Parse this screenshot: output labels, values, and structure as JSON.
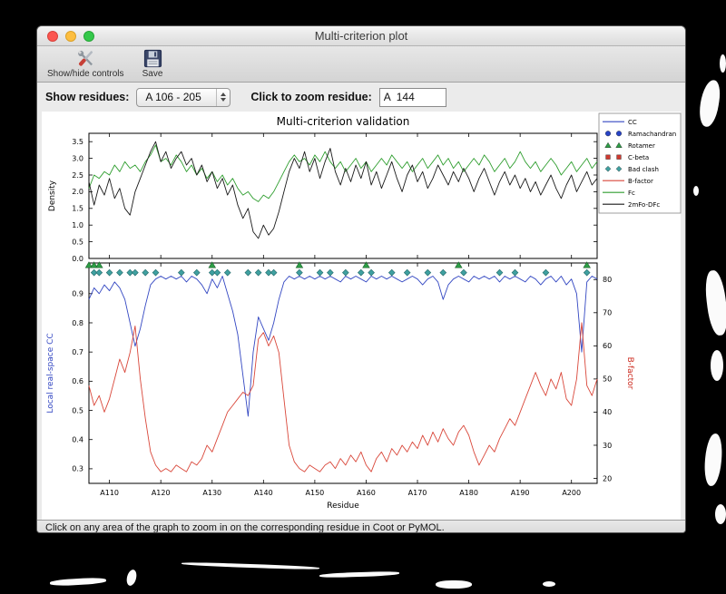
{
  "window": {
    "title": "Multi-criterion plot",
    "toolbar": {
      "show_hide": "Show/hide controls",
      "save": "Save"
    },
    "controls": {
      "show_residues_label": "Show residues:",
      "residue_range": "A 106 - 205",
      "zoom_label": "Click to zoom residue:",
      "zoom_value": "A  144"
    },
    "status_bar": "Click on any area of the graph to zoom in on the corresponding residue in Coot or PyMOL."
  },
  "chart_data": {
    "type": "line",
    "title": "Multi-criterion validation",
    "xlabel": "Residue",
    "x_start": 106,
    "x_end": 205,
    "x_tick_residues": [
      110,
      120,
      130,
      140,
      150,
      160,
      170,
      180,
      190,
      200
    ],
    "x_tick_labels": [
      "A110",
      "A120",
      "A130",
      "A140",
      "A150",
      "A160",
      "A170",
      "A180",
      "A190",
      "A200"
    ],
    "top": {
      "ylabel": "Density",
      "ylim": [
        0.0,
        3.75
      ],
      "yticks": [
        0.0,
        0.5,
        1.0,
        1.5,
        2.0,
        2.5,
        3.0,
        3.5
      ],
      "series": [
        {
          "name": "Fc",
          "color": "#2f9e2f",
          "values": [
            2.1,
            2.5,
            2.4,
            2.6,
            2.5,
            2.8,
            2.6,
            2.9,
            2.7,
            2.8,
            2.6,
            2.9,
            3.1,
            3.4,
            2.9,
            3.0,
            2.8,
            3.1,
            2.9,
            2.6,
            2.8,
            2.5,
            2.7,
            2.4,
            2.6,
            2.3,
            2.5,
            2.2,
            2.4,
            2.1,
            1.9,
            2.0,
            1.8,
            1.7,
            1.9,
            1.8,
            2.0,
            2.3,
            2.6,
            2.9,
            3.1,
            2.9,
            3.0,
            2.8,
            3.1,
            2.9,
            3.2,
            2.9,
            2.7,
            2.9,
            2.6,
            2.8,
            3.0,
            2.7,
            2.9,
            2.6,
            2.8,
            3.0,
            2.8,
            3.1,
            2.9,
            2.7,
            2.9,
            2.6,
            2.8,
            3.0,
            2.7,
            2.9,
            3.1,
            2.8,
            3.0,
            2.7,
            2.9,
            2.6,
            2.8,
            3.0,
            2.8,
            3.1,
            2.9,
            2.6,
            2.8,
            3.0,
            2.7,
            2.9,
            3.2,
            2.9,
            2.7,
            2.9,
            2.6,
            2.8,
            3.0,
            2.8,
            2.5,
            2.7,
            2.9,
            2.6,
            2.8,
            3.0,
            2.7,
            2.9
          ]
        },
        {
          "name": "2mFo-DFc",
          "color": "#1a1a1a",
          "values": [
            2.3,
            1.6,
            2.2,
            1.9,
            2.4,
            1.8,
            2.1,
            1.5,
            1.3,
            2.0,
            2.4,
            2.8,
            3.2,
            3.5,
            2.9,
            3.2,
            2.7,
            3.0,
            3.2,
            2.8,
            3.0,
            2.5,
            2.8,
            2.3,
            2.6,
            2.1,
            2.4,
            1.9,
            2.2,
            1.6,
            1.2,
            1.5,
            0.8,
            0.6,
            1.0,
            0.7,
            0.9,
            1.4,
            2.0,
            2.6,
            3.0,
            2.7,
            3.2,
            2.6,
            3.0,
            2.4,
            2.9,
            3.3,
            2.6,
            2.2,
            2.7,
            2.3,
            2.8,
            2.4,
            2.9,
            2.2,
            2.6,
            2.1,
            2.5,
            2.9,
            2.4,
            2.0,
            2.5,
            2.8,
            2.3,
            2.6,
            2.1,
            2.4,
            2.8,
            2.5,
            2.2,
            2.6,
            2.3,
            2.7,
            2.4,
            2.0,
            2.4,
            2.7,
            2.3,
            1.9,
            2.3,
            2.6,
            2.2,
            2.5,
            2.1,
            2.4,
            2.0,
            2.3,
            1.9,
            2.2,
            2.5,
            2.1,
            1.8,
            2.2,
            2.5,
            2.0,
            2.3,
            2.6,
            2.2,
            2.4
          ]
        }
      ]
    },
    "bottom": {
      "ylabel_left": "Local real-space CC",
      "ylabel_left_color": "#3347c2",
      "ylabel_right": "B-factor",
      "ylabel_right_color": "#cc2a1e",
      "ylim_left": [
        0.25,
        1.005
      ],
      "yticks_left": [
        0.3,
        0.4,
        0.5,
        0.6,
        0.7,
        0.8,
        0.9
      ],
      "ylim_right": [
        18.5,
        85
      ],
      "yticks_right": [
        20,
        30,
        40,
        50,
        60,
        70,
        80
      ],
      "series": [
        {
          "name": "CC",
          "axis": "left",
          "color": "#3347c2",
          "values": [
            0.88,
            0.92,
            0.9,
            0.93,
            0.91,
            0.94,
            0.92,
            0.88,
            0.8,
            0.72,
            0.78,
            0.86,
            0.93,
            0.95,
            0.96,
            0.95,
            0.96,
            0.95,
            0.96,
            0.94,
            0.96,
            0.95,
            0.93,
            0.9,
            0.95,
            0.92,
            0.96,
            0.9,
            0.84,
            0.76,
            0.62,
            0.48,
            0.7,
            0.82,
            0.78,
            0.74,
            0.8,
            0.88,
            0.94,
            0.96,
            0.95,
            0.96,
            0.95,
            0.96,
            0.95,
            0.96,
            0.95,
            0.96,
            0.95,
            0.94,
            0.96,
            0.95,
            0.96,
            0.95,
            0.94,
            0.96,
            0.95,
            0.96,
            0.95,
            0.96,
            0.95,
            0.94,
            0.95,
            0.96,
            0.95,
            0.93,
            0.95,
            0.96,
            0.94,
            0.88,
            0.93,
            0.95,
            0.96,
            0.95,
            0.94,
            0.96,
            0.95,
            0.96,
            0.95,
            0.96,
            0.94,
            0.96,
            0.95,
            0.96,
            0.95,
            0.94,
            0.96,
            0.95,
            0.93,
            0.95,
            0.96,
            0.94,
            0.96,
            0.93,
            0.95,
            0.9,
            0.7,
            0.94,
            0.96,
            0.95
          ]
        },
        {
          "name": "B-factor",
          "axis": "right",
          "color": "#d9473a",
          "values": [
            48,
            42,
            45,
            40,
            44,
            50,
            56,
            52,
            58,
            66,
            50,
            38,
            28,
            24,
            22,
            23,
            22,
            24,
            23,
            22,
            25,
            24,
            26,
            30,
            28,
            32,
            36,
            40,
            42,
            44,
            46,
            45,
            48,
            62,
            64,
            60,
            63,
            58,
            44,
            30,
            25,
            23,
            22,
            24,
            23,
            22,
            24,
            25,
            23,
            26,
            24,
            27,
            25,
            28,
            24,
            22,
            26,
            28,
            25,
            29,
            27,
            30,
            28,
            31,
            29,
            33,
            30,
            34,
            31,
            35,
            32,
            30,
            34,
            36,
            33,
            28,
            24,
            27,
            30,
            28,
            32,
            35,
            38,
            36,
            40,
            44,
            48,
            52,
            48,
            45,
            50,
            47,
            52,
            44,
            42,
            50,
            67,
            48,
            45,
            50
          ]
        }
      ],
      "markers": [
        {
          "name": "Rotamer",
          "shape": "triangle",
          "color": "#2d9e46",
          "edge": "#1c5e2a",
          "y": 0.998,
          "residues": [
            106,
            107,
            108,
            130,
            147,
            160,
            178,
            203
          ]
        },
        {
          "name": "Bad clash",
          "shape": "diamond",
          "color": "#3fa0a0",
          "edge": "#256b6b",
          "y": 0.972,
          "residues": [
            107,
            108,
            110,
            112,
            114,
            115,
            117,
            119,
            124,
            127,
            130,
            131,
            133,
            137,
            139,
            141,
            142,
            147,
            151,
            153,
            156,
            159,
            161,
            165,
            168,
            172,
            175,
            179,
            186,
            189,
            195,
            203
          ]
        }
      ]
    },
    "legend": [
      {
        "label": "CC",
        "type": "line",
        "color": "#3347c2"
      },
      {
        "label": "Ramachandran",
        "type": "circle",
        "color": "#2743c6"
      },
      {
        "label": "Rotamer",
        "type": "triangle",
        "color": "#2d9e46"
      },
      {
        "label": "C-beta",
        "type": "square",
        "color": "#cf3a30"
      },
      {
        "label": "Bad clash",
        "type": "diamond",
        "color": "#3fa0a0"
      },
      {
        "label": "B-factor",
        "type": "line",
        "color": "#d9473a"
      },
      {
        "label": "Fc",
        "type": "line",
        "color": "#2f9e2f"
      },
      {
        "label": "2mFo-DFc",
        "type": "line",
        "color": "#1a1a1a"
      }
    ]
  }
}
